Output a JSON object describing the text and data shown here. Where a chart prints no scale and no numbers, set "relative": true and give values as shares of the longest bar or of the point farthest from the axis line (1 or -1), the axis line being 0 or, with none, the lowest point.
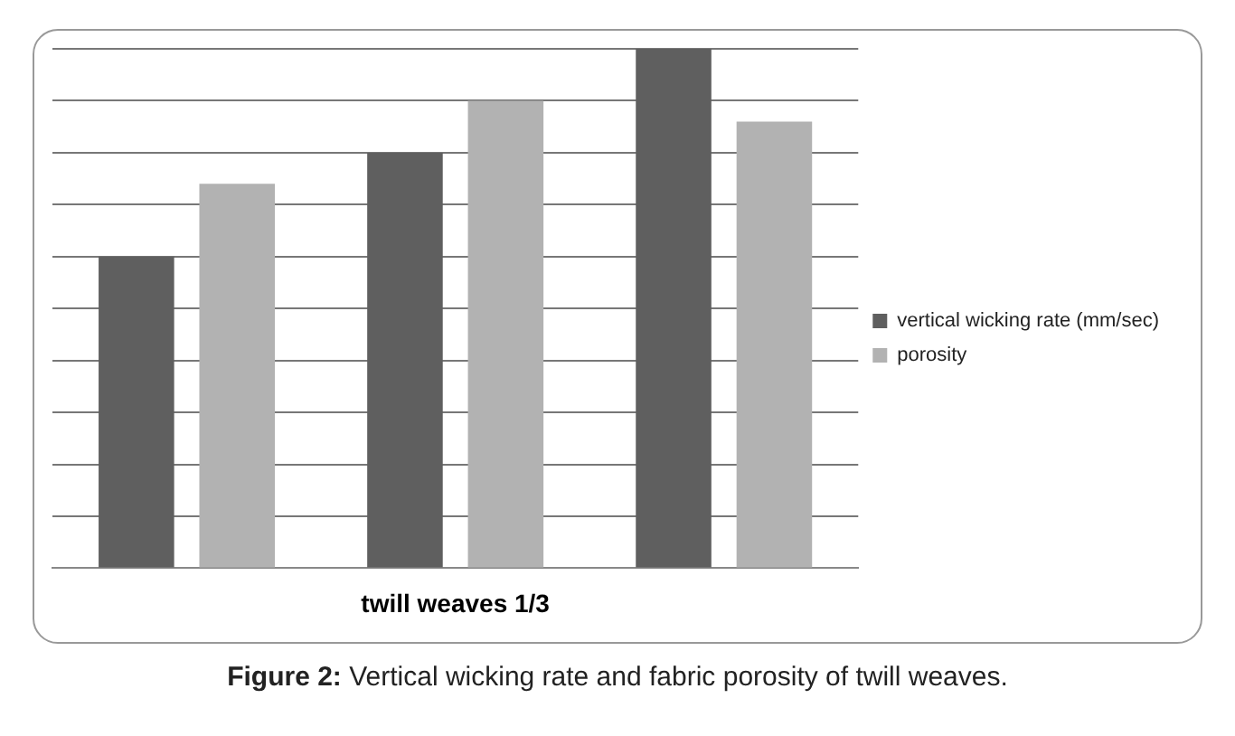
{
  "chart_data": {
    "type": "bar",
    "relative": true,
    "categories": [
      null,
      null,
      null
    ],
    "series": [
      {
        "name": "vertical wicking rate (mm/sec)",
        "color": "#5f5f5f",
        "values": [
          0.6,
          0.8,
          1
        ]
      },
      {
        "name": "porosity",
        "color": "#b2b2b2",
        "values": [
          0.74,
          0.9,
          0.86
        ]
      }
    ],
    "xlabel": "twill weaves 1/3",
    "legend": "right",
    "grid": "y",
    "annotations": [
      "Figure 2: Vertical wicking rate and fabric porosity of twill weaves."
    ]
  }
}
